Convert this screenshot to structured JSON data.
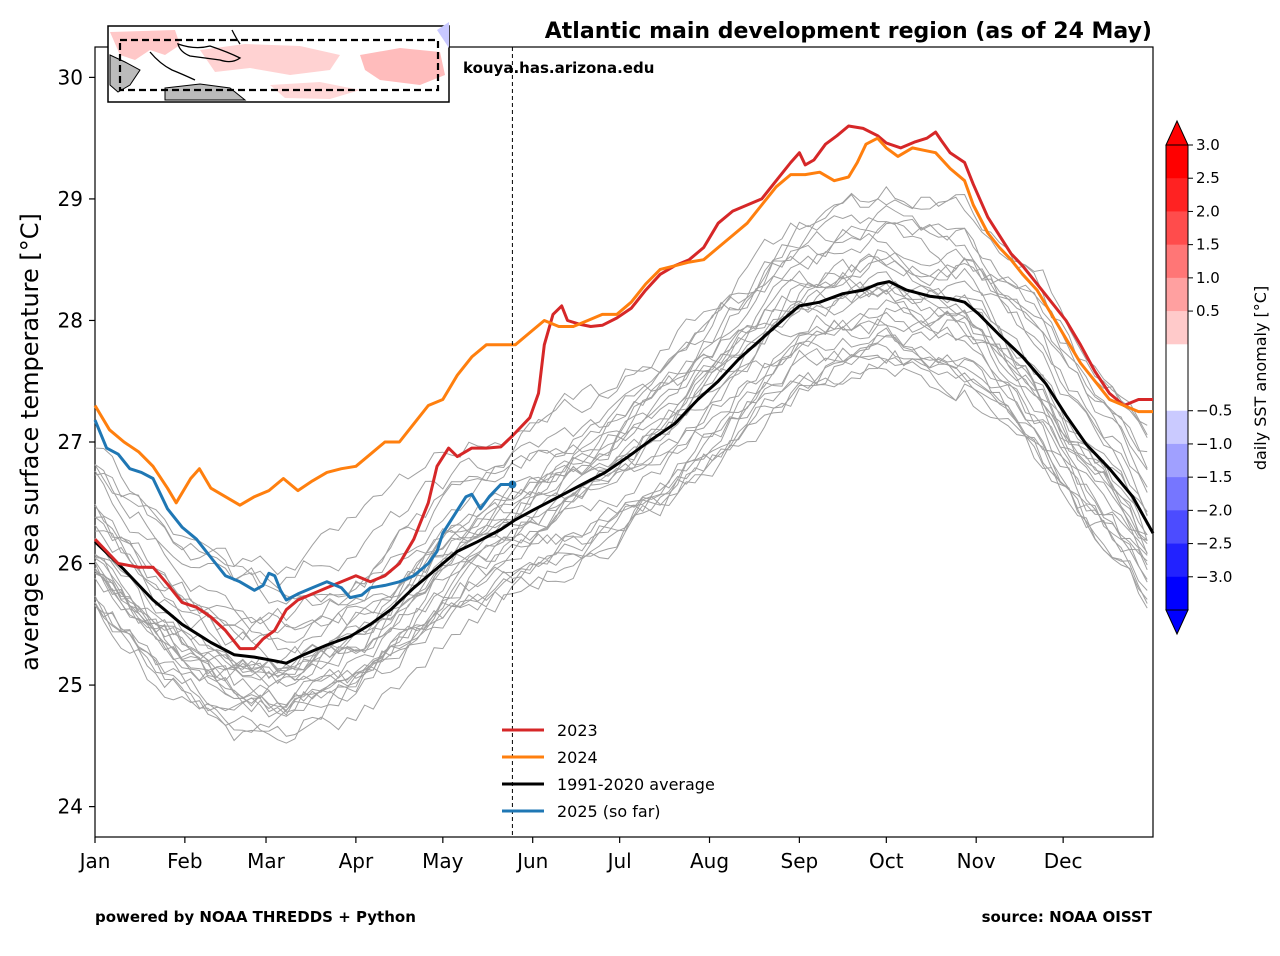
{
  "chart_data": {
    "type": "line",
    "title": "Atlantic main development region (as of 24 May)",
    "ylabel": "average sea surface temperature [°C]",
    "ylim": [
      23.75,
      30.25
    ],
    "yticks": [
      24,
      25,
      26,
      27,
      28,
      29,
      30
    ],
    "xlim": [
      0,
      365
    ],
    "month_ticks": [
      {
        "label": "Jan",
        "day": 0
      },
      {
        "label": "Feb",
        "day": 31
      },
      {
        "label": "Mar",
        "day": 59
      },
      {
        "label": "Apr",
        "day": 90
      },
      {
        "label": "May",
        "day": 120
      },
      {
        "label": "Jun",
        "day": 151
      },
      {
        "label": "Jul",
        "day": 181
      },
      {
        "label": "Aug",
        "day": 212
      },
      {
        "label": "Sep",
        "day": 243
      },
      {
        "label": "Oct",
        "day": 273
      },
      {
        "label": "Nov",
        "day": 304
      },
      {
        "label": "Dec",
        "day": 334
      }
    ],
    "current_day": 144,
    "website": "kouya.has.arizona.edu",
    "credit_left": "powered by NOAA THREDDS + Python",
    "credit_right": "source: NOAA OISST",
    "grid": false,
    "legend_position": "lower-center",
    "series": [
      {
        "name": "2023",
        "color": "#d62728",
        "width": 3,
        "points": [
          [
            0,
            26.2
          ],
          [
            8,
            26.0
          ],
          [
            15,
            25.97
          ],
          [
            20,
            25.97
          ],
          [
            25,
            25.83
          ],
          [
            30,
            25.68
          ],
          [
            35,
            25.64
          ],
          [
            40,
            25.56
          ],
          [
            45,
            25.45
          ],
          [
            50,
            25.3
          ],
          [
            55,
            25.3
          ],
          [
            58,
            25.38
          ],
          [
            62,
            25.45
          ],
          [
            66,
            25.62
          ],
          [
            70,
            25.7
          ],
          [
            75,
            25.75
          ],
          [
            80,
            25.8
          ],
          [
            85,
            25.85
          ],
          [
            90,
            25.9
          ],
          [
            95,
            25.85
          ],
          [
            100,
            25.9
          ],
          [
            105,
            26.0
          ],
          [
            110,
            26.2
          ],
          [
            115,
            26.5
          ],
          [
            118,
            26.8
          ],
          [
            122,
            26.95
          ],
          [
            125,
            26.88
          ],
          [
            130,
            26.95
          ],
          [
            135,
            26.95
          ],
          [
            140,
            26.96
          ],
          [
            144,
            27.05
          ],
          [
            150,
            27.2
          ],
          [
            153,
            27.4
          ],
          [
            155,
            27.8
          ],
          [
            158,
            28.05
          ],
          [
            161,
            28.12
          ],
          [
            163,
            28.0
          ],
          [
            167,
            27.97
          ],
          [
            171,
            27.95
          ],
          [
            175,
            27.96
          ],
          [
            180,
            28.02
          ],
          [
            185,
            28.1
          ],
          [
            190,
            28.25
          ],
          [
            195,
            28.38
          ],
          [
            200,
            28.45
          ],
          [
            205,
            28.5
          ],
          [
            210,
            28.6
          ],
          [
            215,
            28.8
          ],
          [
            220,
            28.9
          ],
          [
            225,
            28.95
          ],
          [
            230,
            29.0
          ],
          [
            235,
            29.15
          ],
          [
            240,
            29.3
          ],
          [
            243,
            29.38
          ],
          [
            245,
            29.28
          ],
          [
            248,
            29.32
          ],
          [
            252,
            29.45
          ],
          [
            256,
            29.52
          ],
          [
            260,
            29.6
          ],
          [
            265,
            29.58
          ],
          [
            270,
            29.52
          ],
          [
            273,
            29.46
          ],
          [
            278,
            29.42
          ],
          [
            283,
            29.47
          ],
          [
            287,
            29.5
          ],
          [
            290,
            29.55
          ],
          [
            292,
            29.48
          ],
          [
            295,
            29.38
          ],
          [
            300,
            29.3
          ],
          [
            303,
            29.12
          ],
          [
            308,
            28.85
          ],
          [
            312,
            28.7
          ],
          [
            316,
            28.55
          ],
          [
            320,
            28.45
          ],
          [
            325,
            28.3
          ],
          [
            330,
            28.15
          ],
          [
            335,
            28.0
          ],
          [
            340,
            27.8
          ],
          [
            345,
            27.58
          ],
          [
            350,
            27.4
          ],
          [
            355,
            27.3
          ],
          [
            360,
            27.35
          ],
          [
            365,
            27.35
          ]
        ]
      },
      {
        "name": "2024",
        "color": "#ff7f0e",
        "width": 3,
        "points": [
          [
            0,
            27.3
          ],
          [
            5,
            27.1
          ],
          [
            10,
            27.0
          ],
          [
            15,
            26.92
          ],
          [
            20,
            26.8
          ],
          [
            25,
            26.62
          ],
          [
            28,
            26.5
          ],
          [
            33,
            26.7
          ],
          [
            36,
            26.78
          ],
          [
            40,
            26.62
          ],
          [
            45,
            26.55
          ],
          [
            50,
            26.48
          ],
          [
            55,
            26.55
          ],
          [
            60,
            26.6
          ],
          [
            65,
            26.7
          ],
          [
            70,
            26.6
          ],
          [
            75,
            26.68
          ],
          [
            80,
            26.75
          ],
          [
            85,
            26.78
          ],
          [
            90,
            26.8
          ],
          [
            95,
            26.9
          ],
          [
            100,
            27.0
          ],
          [
            105,
            27.0
          ],
          [
            110,
            27.15
          ],
          [
            115,
            27.3
          ],
          [
            120,
            27.35
          ],
          [
            125,
            27.55
          ],
          [
            130,
            27.7
          ],
          [
            135,
            27.8
          ],
          [
            140,
            27.8
          ],
          [
            145,
            27.8
          ],
          [
            150,
            27.9
          ],
          [
            155,
            28.0
          ],
          [
            160,
            27.95
          ],
          [
            165,
            27.95
          ],
          [
            170,
            28.0
          ],
          [
            175,
            28.05
          ],
          [
            180,
            28.05
          ],
          [
            185,
            28.15
          ],
          [
            190,
            28.3
          ],
          [
            195,
            28.42
          ],
          [
            200,
            28.45
          ],
          [
            205,
            28.48
          ],
          [
            210,
            28.5
          ],
          [
            215,
            28.6
          ],
          [
            220,
            28.7
          ],
          [
            225,
            28.8
          ],
          [
            230,
            28.95
          ],
          [
            235,
            29.1
          ],
          [
            240,
            29.2
          ],
          [
            245,
            29.2
          ],
          [
            250,
            29.22
          ],
          [
            255,
            29.15
          ],
          [
            260,
            29.18
          ],
          [
            263,
            29.3
          ],
          [
            266,
            29.45
          ],
          [
            270,
            29.5
          ],
          [
            273,
            29.42
          ],
          [
            277,
            29.35
          ],
          [
            282,
            29.42
          ],
          [
            286,
            29.4
          ],
          [
            290,
            29.38
          ],
          [
            295,
            29.25
          ],
          [
            300,
            29.15
          ],
          [
            303,
            28.95
          ],
          [
            308,
            28.72
          ],
          [
            312,
            28.6
          ],
          [
            316,
            28.5
          ],
          [
            320,
            28.38
          ],
          [
            325,
            28.25
          ],
          [
            330,
            28.05
          ],
          [
            335,
            27.85
          ],
          [
            340,
            27.65
          ],
          [
            345,
            27.5
          ],
          [
            350,
            27.35
          ],
          [
            355,
            27.3
          ],
          [
            360,
            27.25
          ],
          [
            365,
            27.25
          ]
        ]
      },
      {
        "name": "1991-2020 average",
        "color": "#000000",
        "width": 3,
        "points": [
          [
            0,
            26.18
          ],
          [
            10,
            25.95
          ],
          [
            20,
            25.7
          ],
          [
            30,
            25.5
          ],
          [
            40,
            25.35
          ],
          [
            48,
            25.25
          ],
          [
            55,
            25.23
          ],
          [
            62,
            25.2
          ],
          [
            66,
            25.18
          ],
          [
            72,
            25.25
          ],
          [
            80,
            25.33
          ],
          [
            88,
            25.4
          ],
          [
            95,
            25.5
          ],
          [
            102,
            25.62
          ],
          [
            110,
            25.8
          ],
          [
            118,
            25.96
          ],
          [
            125,
            26.1
          ],
          [
            132,
            26.18
          ],
          [
            140,
            26.28
          ],
          [
            145,
            26.36
          ],
          [
            152,
            26.45
          ],
          [
            160,
            26.55
          ],
          [
            168,
            26.65
          ],
          [
            176,
            26.75
          ],
          [
            184,
            26.88
          ],
          [
            192,
            27.02
          ],
          [
            200,
            27.15
          ],
          [
            208,
            27.35
          ],
          [
            215,
            27.5
          ],
          [
            222,
            27.68
          ],
          [
            230,
            27.85
          ],
          [
            238,
            28.02
          ],
          [
            243,
            28.12
          ],
          [
            250,
            28.15
          ],
          [
            258,
            28.22
          ],
          [
            265,
            28.25
          ],
          [
            270,
            28.3
          ],
          [
            274,
            28.32
          ],
          [
            280,
            28.25
          ],
          [
            288,
            28.2
          ],
          [
            295,
            28.18
          ],
          [
            300,
            28.15
          ],
          [
            305,
            28.05
          ],
          [
            312,
            27.88
          ],
          [
            320,
            27.7
          ],
          [
            328,
            27.48
          ],
          [
            335,
            27.22
          ],
          [
            342,
            26.98
          ],
          [
            350,
            26.78
          ],
          [
            358,
            26.55
          ],
          [
            365,
            26.25
          ]
        ]
      },
      {
        "name": "2025 (so far)",
        "color": "#1f77b4",
        "width": 3,
        "points": [
          [
            0,
            27.18
          ],
          [
            4,
            26.95
          ],
          [
            8,
            26.9
          ],
          [
            12,
            26.78
          ],
          [
            16,
            26.75
          ],
          [
            20,
            26.7
          ],
          [
            25,
            26.45
          ],
          [
            30,
            26.3
          ],
          [
            35,
            26.2
          ],
          [
            40,
            26.05
          ],
          [
            45,
            25.9
          ],
          [
            50,
            25.85
          ],
          [
            55,
            25.78
          ],
          [
            58,
            25.82
          ],
          [
            60,
            25.92
          ],
          [
            62,
            25.9
          ],
          [
            64,
            25.78
          ],
          [
            66,
            25.7
          ],
          [
            70,
            25.75
          ],
          [
            75,
            25.8
          ],
          [
            80,
            25.85
          ],
          [
            85,
            25.8
          ],
          [
            88,
            25.72
          ],
          [
            92,
            25.74
          ],
          [
            95,
            25.8
          ],
          [
            100,
            25.82
          ],
          [
            105,
            25.85
          ],
          [
            110,
            25.9
          ],
          [
            115,
            26.0
          ],
          [
            118,
            26.1
          ],
          [
            120,
            26.25
          ],
          [
            124,
            26.4
          ],
          [
            128,
            26.55
          ],
          [
            130,
            26.57
          ],
          [
            133,
            26.45
          ],
          [
            136,
            26.55
          ],
          [
            140,
            26.65
          ],
          [
            144,
            26.65
          ]
        ]
      }
    ]
  },
  "colorbar": {
    "label": "daily SST anomaly [°C]",
    "ticks": [
      "3.0",
      "2.5",
      "2.0",
      "1.5",
      "1.0",
      "0.5",
      "−0.5",
      "−1.0",
      "−1.5",
      "−2.0",
      "−2.5",
      "−3.0"
    ],
    "colors_top_to_bottom": [
      "#ff0000",
      "#ff2222",
      "#ff4c4c",
      "#ff7676",
      "#ffa0a0",
      "#ffcaca",
      "#ffffff",
      "#ffffff",
      "#cacaff",
      "#a0a0ff",
      "#7676ff",
      "#4c4cff",
      "#2222ff",
      "#0000ff"
    ]
  }
}
